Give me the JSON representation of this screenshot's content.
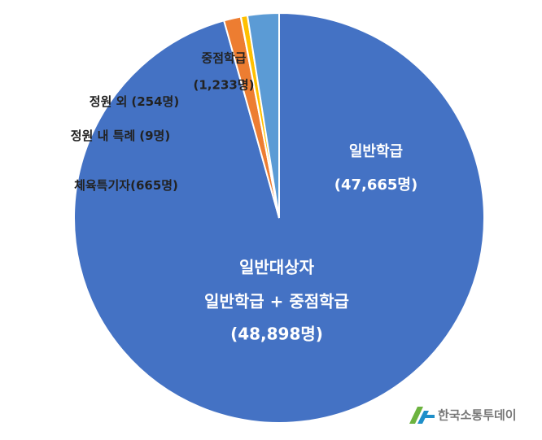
{
  "chart_data": {
    "type": "pie",
    "categories": [
      "일반학급",
      "체육특기자",
      "정원 내 특례",
      "정원 외",
      "중점학급"
    ],
    "values": [
      47665,
      665,
      9,
      254,
      1233
    ],
    "value_labels": [
      "(47,665명)",
      "(665명)",
      "(9명)",
      "(254명)",
      "(1,233명)"
    ],
    "colors": [
      "#4472c4",
      "#ed7d31",
      "#a5a5a5",
      "#ffc000",
      "#5b9bd5"
    ],
    "annotations": [
      "일반대상자",
      "일반학급 + 중점학급",
      "(48,898명)"
    ],
    "watermark": "한국소통투데이"
  }
}
